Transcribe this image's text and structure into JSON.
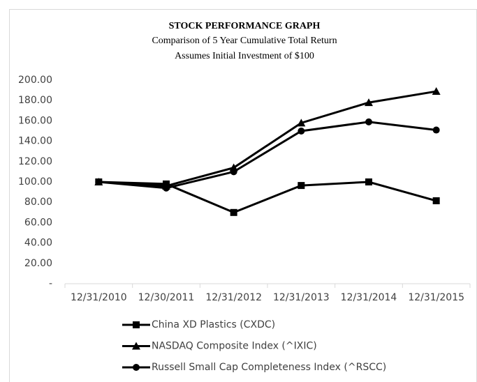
{
  "chart_data": {
    "type": "line",
    "title": "STOCK PERFORMANCE GRAPH",
    "subtitle": [
      "Comparison of 5 Year Cumulative Total Return",
      "Assumes Initial Investment of $100"
    ],
    "categories": [
      "12/31/2010",
      "12/30/2011",
      "12/31/2012",
      "12/31/2013",
      "12/31/2014",
      "12/31/2015"
    ],
    "series": [
      {
        "name": "China XD Plastics (CXDC)",
        "color": "#000000",
        "marker": "square",
        "values": [
          100,
          98,
          70,
          96.5,
          100,
          81.5
        ]
      },
      {
        "name": "NASDAQ Composite Index (^IXIC)",
        "color": "#000000",
        "marker": "triangle",
        "values": [
          100,
          96,
          114,
          158,
          178,
          189
        ]
      },
      {
        "name": "Russell Small Cap Completeness Index (^RSCC)",
        "color": "#000000",
        "marker": "circle",
        "values": [
          100,
          94,
          110,
          150,
          159,
          151
        ]
      }
    ],
    "ylim": [
      0,
      200
    ],
    "yticks": [
      {
        "value": 0,
        "label": "-"
      },
      {
        "value": 20,
        "label": "20.00"
      },
      {
        "value": 40,
        "label": "40.00"
      },
      {
        "value": 60,
        "label": "60.00"
      },
      {
        "value": 80,
        "label": "80.00"
      },
      {
        "value": 100,
        "label": "100.00"
      },
      {
        "value": 120,
        "label": "120.00"
      },
      {
        "value": 140,
        "label": "140.00"
      },
      {
        "value": 160,
        "label": "160.00"
      },
      {
        "value": 180,
        "label": "180.00"
      },
      {
        "value": 200,
        "label": "200.00"
      }
    ],
    "grid": false,
    "legend": "bottom"
  }
}
